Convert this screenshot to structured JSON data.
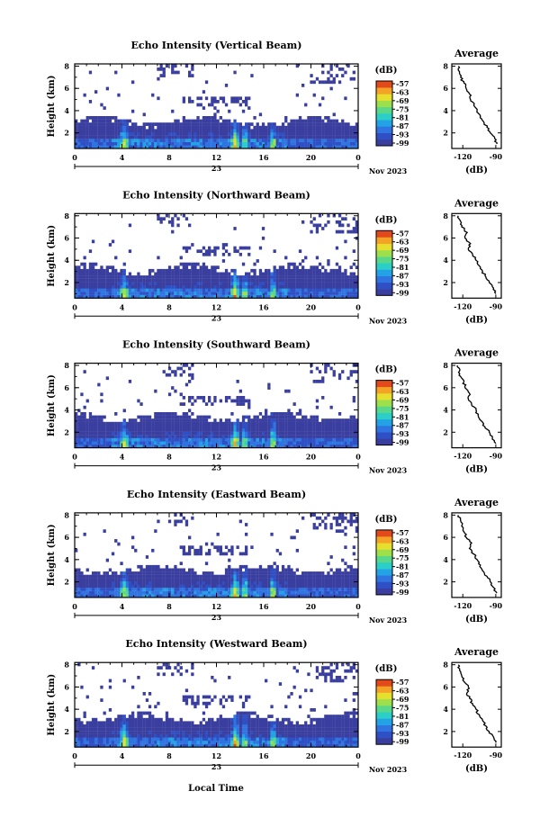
{
  "colorbar": {
    "unit": "(dB)",
    "ticks": [
      "-57",
      "-63",
      "-69",
      "-75",
      "-81",
      "-87",
      "-93",
      "-99"
    ],
    "colors": [
      "#3a3f9f",
      "#2f4fc4",
      "#2f74e0",
      "#23a3e6",
      "#2bcfc8",
      "#59d88a",
      "#9de04c",
      "#e6df2e",
      "#f5a326",
      "#e24a1c"
    ]
  },
  "shared_x": {
    "tick_labels": [
      "0",
      "4",
      "8",
      "12",
      "16",
      "20",
      "0"
    ],
    "range": [
      0,
      24
    ],
    "date_day": "23",
    "date_month": "Nov 2023",
    "label": "Local Time"
  },
  "chart_data": [
    {
      "type": "heatmap",
      "title": "Echo Intensity (Vertical Beam)",
      "ylabel": "Height (km)",
      "yticks": [
        "2",
        "4",
        "6",
        "8"
      ],
      "ylim": [
        0.6,
        8.2
      ],
      "xlim": [
        0,
        24
      ],
      "main_layer_top_km": 3.2,
      "enhanced_echo_hours": [
        4.2,
        13.6,
        14.4,
        16.8
      ],
      "average_profile": {
        "title": "Average",
        "xlabel": "(dB)",
        "xticks": [
          "-120",
          "-90"
        ],
        "xlim": [
          -130,
          -85
        ],
        "yticks": [
          "2",
          "4",
          "6",
          "8"
        ],
        "heights_km": [
          1.0,
          1.5,
          2.0,
          2.5,
          3.0,
          3.5,
          4.0,
          4.5,
          5.0,
          5.5,
          6.0,
          6.5,
          7.0,
          7.5,
          8.0
        ],
        "values_db": [
          -89,
          -91,
          -95,
          -98,
          -101,
          -104,
          -107,
          -110,
          -113,
          -114,
          -117,
          -119,
          -122,
          -123,
          -124
        ]
      }
    },
    {
      "type": "heatmap",
      "title": "Echo Intensity (Northward Beam)",
      "ylabel": "Height (km)",
      "yticks": [
        "2",
        "4",
        "6",
        "8"
      ],
      "ylim": [
        0.6,
        8.2
      ],
      "xlim": [
        0,
        24
      ],
      "main_layer_top_km": 3.4,
      "enhanced_echo_hours": [
        4.2,
        13.6,
        14.4,
        16.8
      ],
      "average_profile": {
        "title": "Average",
        "xlabel": "(dB)",
        "xticks": [
          "-120",
          "-90"
        ],
        "xlim": [
          -130,
          -85
        ],
        "yticks": [
          "2",
          "4",
          "6",
          "8"
        ],
        "heights_km": [
          1.0,
          1.5,
          2.0,
          2.5,
          3.0,
          3.5,
          4.0,
          4.5,
          5.0,
          5.5,
          6.0,
          6.5,
          7.0,
          7.5,
          8.0
        ],
        "values_db": [
          -90,
          -92,
          -96,
          -99,
          -102,
          -105,
          -108,
          -111,
          -115,
          -113,
          -118,
          -116,
          -121,
          -122,
          -124
        ]
      }
    },
    {
      "type": "heatmap",
      "title": "Echo Intensity (Southward Beam)",
      "ylabel": "Height (km)",
      "yticks": [
        "2",
        "4",
        "6",
        "8"
      ],
      "ylim": [
        0.6,
        8.2
      ],
      "xlim": [
        0,
        24
      ],
      "main_layer_top_km": 3.6,
      "enhanced_echo_hours": [
        4.2,
        13.6,
        14.4,
        16.8
      ],
      "average_profile": {
        "title": "Average",
        "xlabel": "(dB)",
        "xticks": [
          "-120",
          "-90"
        ],
        "xlim": [
          -130,
          -85
        ],
        "yticks": [
          "2",
          "4",
          "6",
          "8"
        ],
        "heights_km": [
          1.0,
          1.5,
          2.0,
          2.5,
          3.0,
          3.5,
          4.0,
          4.5,
          5.0,
          5.5,
          6.0,
          6.5,
          7.0,
          7.5,
          8.0
        ],
        "values_db": [
          -90,
          -93,
          -96,
          -100,
          -103,
          -106,
          -108,
          -112,
          -115,
          -114,
          -118,
          -119,
          -122,
          -123,
          -125
        ]
      }
    },
    {
      "type": "heatmap",
      "title": "Echo Intensity (Eastward Beam)",
      "ylabel": "Height (km)",
      "yticks": [
        "2",
        "4",
        "6",
        "8"
      ],
      "ylim": [
        0.6,
        8.2
      ],
      "xlim": [
        0,
        24
      ],
      "main_layer_top_km": 3.3,
      "enhanced_echo_hours": [
        4.2,
        13.6,
        14.4,
        16.8
      ],
      "average_profile": {
        "title": "Average",
        "xlabel": "(dB)",
        "xticks": [
          "-120",
          "-90"
        ],
        "xlim": [
          -130,
          -85
        ],
        "yticks": [
          "2",
          "4",
          "6",
          "8"
        ],
        "heights_km": [
          1.0,
          1.5,
          2.0,
          2.5,
          3.0,
          3.5,
          4.0,
          4.5,
          5.0,
          5.5,
          6.0,
          6.5,
          7.0,
          7.5,
          8.0
        ],
        "values_db": [
          -89,
          -92,
          -95,
          -98,
          -102,
          -104,
          -107,
          -110,
          -114,
          -112,
          -117,
          -119,
          -121,
          -122,
          -124
        ]
      }
    },
    {
      "type": "heatmap",
      "title": "Echo Intensity (Westward Beam)",
      "ylabel": "Height (km)",
      "yticks": [
        "2",
        "4",
        "6",
        "8"
      ],
      "ylim": [
        0.6,
        8.2
      ],
      "xlim": [
        0,
        24
      ],
      "main_layer_top_km": 3.4,
      "enhanced_echo_hours": [
        4.2,
        13.6,
        14.4,
        16.8
      ],
      "average_profile": {
        "title": "Average",
        "xlabel": "(dB)",
        "xticks": [
          "-120",
          "-90"
        ],
        "xlim": [
          -130,
          -85
        ],
        "yticks": [
          "2",
          "4",
          "6",
          "8"
        ],
        "heights_km": [
          1.0,
          1.5,
          2.0,
          2.5,
          3.0,
          3.5,
          4.0,
          4.5,
          5.0,
          5.5,
          6.0,
          6.5,
          7.0,
          7.5,
          8.0
        ],
        "values_db": [
          -90,
          -92,
          -96,
          -99,
          -102,
          -105,
          -108,
          -111,
          -114,
          -116,
          -115,
          -119,
          -121,
          -123,
          -124
        ]
      }
    }
  ]
}
